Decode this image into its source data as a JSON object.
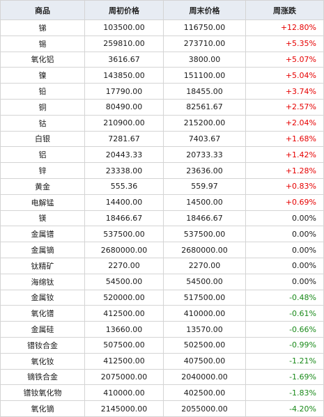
{
  "headers": [
    "商品",
    "周初价格",
    "周末价格",
    "周涨跌"
  ],
  "rows": [
    {
      "name": "锑",
      "start": "103500.00",
      "end": "116750.00",
      "change": "+12.80%",
      "dir": "up"
    },
    {
      "name": "锡",
      "start": "259810.00",
      "end": "273710.00",
      "change": "+5.35%",
      "dir": "up"
    },
    {
      "name": "氧化铝",
      "start": "3616.67",
      "end": "3800.00",
      "change": "+5.07%",
      "dir": "up"
    },
    {
      "name": "镍",
      "start": "143850.00",
      "end": "151100.00",
      "change": "+5.04%",
      "dir": "up"
    },
    {
      "name": "铅",
      "start": "17790.00",
      "end": "18455.00",
      "change": "+3.74%",
      "dir": "up"
    },
    {
      "name": "铜",
      "start": "80490.00",
      "end": "82561.67",
      "change": "+2.57%",
      "dir": "up"
    },
    {
      "name": "钴",
      "start": "210900.00",
      "end": "215200.00",
      "change": "+2.04%",
      "dir": "up"
    },
    {
      "name": "白银",
      "start": "7281.67",
      "end": "7403.67",
      "change": "+1.68%",
      "dir": "up"
    },
    {
      "name": "铝",
      "start": "20443.33",
      "end": "20733.33",
      "change": "+1.42%",
      "dir": "up"
    },
    {
      "name": "锌",
      "start": "23338.00",
      "end": "23636.00",
      "change": "+1.28%",
      "dir": "up"
    },
    {
      "name": "黄金",
      "start": "555.36",
      "end": "559.97",
      "change": "+0.83%",
      "dir": "up"
    },
    {
      "name": "电解锰",
      "start": "14400.00",
      "end": "14500.00",
      "change": "+0.69%",
      "dir": "up"
    },
    {
      "name": "镁",
      "start": "18466.67",
      "end": "18466.67",
      "change": "0.00%",
      "dir": "flat"
    },
    {
      "name": "金属镨",
      "start": "537500.00",
      "end": "537500.00",
      "change": "0.00%",
      "dir": "flat"
    },
    {
      "name": "金属镝",
      "start": "2680000.00",
      "end": "2680000.00",
      "change": "0.00%",
      "dir": "flat"
    },
    {
      "name": "钛精矿",
      "start": "2270.00",
      "end": "2270.00",
      "change": "0.00%",
      "dir": "flat"
    },
    {
      "name": "海绵钛",
      "start": "54500.00",
      "end": "54500.00",
      "change": "0.00%",
      "dir": "flat"
    },
    {
      "name": "金属钕",
      "start": "520000.00",
      "end": "517500.00",
      "change": "-0.48%",
      "dir": "down"
    },
    {
      "name": "氧化镨",
      "start": "412500.00",
      "end": "410000.00",
      "change": "-0.61%",
      "dir": "down"
    },
    {
      "name": "金属硅",
      "start": "13660.00",
      "end": "13570.00",
      "change": "-0.66%",
      "dir": "down"
    },
    {
      "name": "镨钕合金",
      "start": "507500.00",
      "end": "502500.00",
      "change": "-0.99%",
      "dir": "down"
    },
    {
      "name": "氧化钕",
      "start": "412500.00",
      "end": "407500.00",
      "change": "-1.21%",
      "dir": "down"
    },
    {
      "name": "镝铁合金",
      "start": "2075000.00",
      "end": "2040000.00",
      "change": "-1.69%",
      "dir": "down"
    },
    {
      "name": "镨钕氧化物",
      "start": "410000.00",
      "end": "402500.00",
      "change": "-1.83%",
      "dir": "down"
    },
    {
      "name": "氧化镝",
      "start": "2145000.00",
      "end": "2055000.00",
      "change": "-4.20%",
      "dir": "down"
    }
  ],
  "colors": {
    "up": "#e60000",
    "down": "#1a8a1a",
    "header_bg": "#e7ecf3",
    "border": "#d4d4d4"
  }
}
